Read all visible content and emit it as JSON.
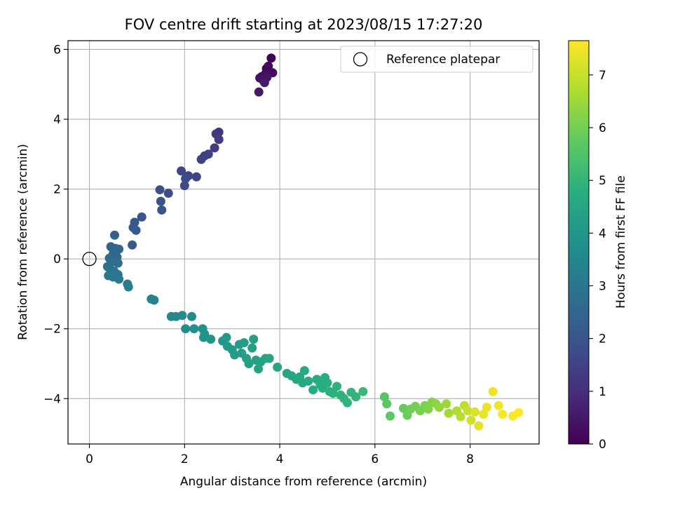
{
  "chart_data": {
    "type": "scatter",
    "title": "FOV centre drift starting at 2023/08/15 17:27:20",
    "xlabel": "Angular distance from reference (arcmin)",
    "ylabel": "Rotation from reference (arcmin)",
    "xlim": [
      -0.45,
      9.45
    ],
    "ylim": [
      -5.3,
      6.25
    ],
    "xticks": [
      0,
      2,
      4,
      6,
      8
    ],
    "yticks": [
      -4,
      -2,
      0,
      2,
      4,
      6
    ],
    "grid": true,
    "legend": {
      "placement": "top-right",
      "entries": [
        "Reference platepar"
      ]
    },
    "reference_point": {
      "x": 0,
      "y": 0,
      "label": "Reference platepar"
    },
    "colorbar": {
      "label": "Hours from first FF file",
      "range": [
        0,
        7.65
      ],
      "ticks": [
        0,
        1,
        2,
        3,
        4,
        5,
        6,
        7
      ],
      "colormap": "viridis"
    },
    "points": [
      {
        "x": 3.82,
        "y": 5.75,
        "c": 0.05
      },
      {
        "x": 3.72,
        "y": 5.45,
        "c": 0.1
      },
      {
        "x": 3.76,
        "y": 5.52,
        "c": 0.15
      },
      {
        "x": 3.85,
        "y": 5.33,
        "c": 0.2
      },
      {
        "x": 3.62,
        "y": 5.22,
        "c": 0.25
      },
      {
        "x": 3.7,
        "y": 5.3,
        "c": 0.3
      },
      {
        "x": 3.58,
        "y": 5.18,
        "c": 0.35
      },
      {
        "x": 3.66,
        "y": 5.1,
        "c": 0.4
      },
      {
        "x": 3.73,
        "y": 5.2,
        "c": 0.45
      },
      {
        "x": 3.56,
        "y": 4.78,
        "c": 0.5
      },
      {
        "x": 3.68,
        "y": 5.05,
        "c": 0.55
      },
      {
        "x": 2.72,
        "y": 3.63,
        "c": 1.2
      },
      {
        "x": 2.66,
        "y": 3.58,
        "c": 1.25
      },
      {
        "x": 2.72,
        "y": 3.42,
        "c": 1.3
      },
      {
        "x": 2.63,
        "y": 3.18,
        "c": 1.35
      },
      {
        "x": 2.5,
        "y": 3.0,
        "c": 1.4
      },
      {
        "x": 2.42,
        "y": 2.95,
        "c": 1.45
      },
      {
        "x": 2.35,
        "y": 2.85,
        "c": 1.5
      },
      {
        "x": 2.25,
        "y": 2.35,
        "c": 1.55
      },
      {
        "x": 2.08,
        "y": 2.38,
        "c": 1.6
      },
      {
        "x": 1.93,
        "y": 2.52,
        "c": 1.65
      },
      {
        "x": 2.0,
        "y": 2.1,
        "c": 1.7
      },
      {
        "x": 2.02,
        "y": 2.3,
        "c": 1.75
      },
      {
        "x": 1.66,
        "y": 1.88,
        "c": 1.8
      },
      {
        "x": 1.48,
        "y": 1.98,
        "c": 1.85
      },
      {
        "x": 1.5,
        "y": 1.65,
        "c": 1.9
      },
      {
        "x": 1.52,
        "y": 1.4,
        "c": 1.95
      },
      {
        "x": 1.1,
        "y": 1.2,
        "c": 2.0
      },
      {
        "x": 0.95,
        "y": 1.05,
        "c": 2.05
      },
      {
        "x": 0.92,
        "y": 0.9,
        "c": 2.1
      },
      {
        "x": 0.98,
        "y": 0.82,
        "c": 2.15
      },
      {
        "x": 0.9,
        "y": 0.4,
        "c": 2.2
      },
      {
        "x": 0.53,
        "y": 0.68,
        "c": 2.35
      },
      {
        "x": 0.45,
        "y": 0.35,
        "c": 2.4
      },
      {
        "x": 0.55,
        "y": 0.3,
        "c": 2.45
      },
      {
        "x": 0.62,
        "y": 0.28,
        "c": 2.5
      },
      {
        "x": 0.5,
        "y": 0.15,
        "c": 2.55
      },
      {
        "x": 0.58,
        "y": 0.05,
        "c": 2.6
      },
      {
        "x": 0.42,
        "y": 0.02,
        "c": 2.65
      },
      {
        "x": 0.46,
        "y": -0.1,
        "c": 2.7
      },
      {
        "x": 0.6,
        "y": -0.12,
        "c": 2.75
      },
      {
        "x": 0.38,
        "y": -0.22,
        "c": 2.8
      },
      {
        "x": 0.44,
        "y": -0.3,
        "c": 2.85
      },
      {
        "x": 0.52,
        "y": -0.35,
        "c": 2.9
      },
      {
        "x": 0.6,
        "y": -0.45,
        "c": 2.95
      },
      {
        "x": 0.4,
        "y": -0.48,
        "c": 3.0
      },
      {
        "x": 0.5,
        "y": -0.52,
        "c": 3.05
      },
      {
        "x": 0.62,
        "y": -0.58,
        "c": 3.1
      },
      {
        "x": 0.8,
        "y": -0.72,
        "c": 3.2
      },
      {
        "x": 0.82,
        "y": -0.8,
        "c": 3.25
      },
      {
        "x": 1.3,
        "y": -1.15,
        "c": 3.35
      },
      {
        "x": 1.36,
        "y": -1.18,
        "c": 3.4
      },
      {
        "x": 1.72,
        "y": -1.65,
        "c": 3.5
      },
      {
        "x": 1.82,
        "y": -1.65,
        "c": 3.55
      },
      {
        "x": 1.95,
        "y": -1.62,
        "c": 3.6
      },
      {
        "x": 2.15,
        "y": -1.65,
        "c": 3.65
      },
      {
        "x": 2.02,
        "y": -2.0,
        "c": 3.7
      },
      {
        "x": 2.2,
        "y": -2.0,
        "c": 3.75
      },
      {
        "x": 2.38,
        "y": -2.0,
        "c": 3.8
      },
      {
        "x": 2.42,
        "y": -2.15,
        "c": 3.85
      },
      {
        "x": 2.4,
        "y": -2.25,
        "c": 3.9
      },
      {
        "x": 2.55,
        "y": -2.3,
        "c": 3.95
      },
      {
        "x": 2.8,
        "y": -2.35,
        "c": 4.0
      },
      {
        "x": 2.88,
        "y": -2.25,
        "c": 4.05
      },
      {
        "x": 2.9,
        "y": -2.5,
        "c": 4.1
      },
      {
        "x": 3.0,
        "y": -2.6,
        "c": 4.12
      },
      {
        "x": 3.05,
        "y": -2.75,
        "c": 4.15
      },
      {
        "x": 3.15,
        "y": -2.45,
        "c": 4.18
      },
      {
        "x": 3.2,
        "y": -2.7,
        "c": 4.2
      },
      {
        "x": 3.25,
        "y": -2.4,
        "c": 4.22
      },
      {
        "x": 3.3,
        "y": -2.85,
        "c": 4.25
      },
      {
        "x": 3.35,
        "y": -3.0,
        "c": 4.28
      },
      {
        "x": 3.42,
        "y": -2.55,
        "c": 4.3
      },
      {
        "x": 3.45,
        "y": -2.3,
        "c": 4.32
      },
      {
        "x": 3.5,
        "y": -2.9,
        "c": 4.35
      },
      {
        "x": 3.55,
        "y": -3.15,
        "c": 4.38
      },
      {
        "x": 3.6,
        "y": -2.95,
        "c": 4.4
      },
      {
        "x": 3.7,
        "y": -2.85,
        "c": 4.42
      },
      {
        "x": 3.78,
        "y": -2.85,
        "c": 4.45
      },
      {
        "x": 3.95,
        "y": -3.1,
        "c": 4.48
      },
      {
        "x": 4.15,
        "y": -3.28,
        "c": 4.5
      },
      {
        "x": 4.25,
        "y": -3.35,
        "c": 4.52
      },
      {
        "x": 4.35,
        "y": -3.45,
        "c": 4.55
      },
      {
        "x": 4.42,
        "y": -3.38,
        "c": 4.58
      },
      {
        "x": 4.48,
        "y": -3.55,
        "c": 4.6
      },
      {
        "x": 4.52,
        "y": -3.2,
        "c": 4.62
      },
      {
        "x": 4.6,
        "y": -3.5,
        "c": 4.65
      },
      {
        "x": 4.7,
        "y": -3.75,
        "c": 4.68
      },
      {
        "x": 4.78,
        "y": -3.45,
        "c": 4.7
      },
      {
        "x": 4.85,
        "y": -3.6,
        "c": 4.72
      },
      {
        "x": 4.9,
        "y": -3.7,
        "c": 4.75
      },
      {
        "x": 4.95,
        "y": -3.4,
        "c": 4.78
      },
      {
        "x": 5.0,
        "y": -3.55,
        "c": 4.8
      },
      {
        "x": 5.05,
        "y": -3.8,
        "c": 4.82
      },
      {
        "x": 5.12,
        "y": -3.85,
        "c": 4.85
      },
      {
        "x": 5.2,
        "y": -3.65,
        "c": 4.88
      },
      {
        "x": 5.28,
        "y": -3.9,
        "c": 4.9
      },
      {
        "x": 5.35,
        "y": -4.0,
        "c": 4.92
      },
      {
        "x": 5.42,
        "y": -4.12,
        "c": 4.95
      },
      {
        "x": 5.5,
        "y": -3.82,
        "c": 4.98
      },
      {
        "x": 5.6,
        "y": -3.95,
        "c": 5.0
      },
      {
        "x": 5.75,
        "y": -3.8,
        "c": 5.1
      },
      {
        "x": 6.2,
        "y": -3.95,
        "c": 5.6
      },
      {
        "x": 6.25,
        "y": -4.15,
        "c": 5.65
      },
      {
        "x": 6.32,
        "y": -4.5,
        "c": 5.7
      },
      {
        "x": 6.6,
        "y": -4.28,
        "c": 5.85
      },
      {
        "x": 6.68,
        "y": -4.48,
        "c": 5.9
      },
      {
        "x": 6.75,
        "y": -4.3,
        "c": 5.95
      },
      {
        "x": 6.85,
        "y": -4.22,
        "c": 6.0
      },
      {
        "x": 6.95,
        "y": -4.35,
        "c": 6.05
      },
      {
        "x": 7.05,
        "y": -4.2,
        "c": 6.1
      },
      {
        "x": 7.12,
        "y": -4.3,
        "c": 6.15
      },
      {
        "x": 7.2,
        "y": -4.1,
        "c": 6.2
      },
      {
        "x": 7.28,
        "y": -4.15,
        "c": 6.3
      },
      {
        "x": 7.35,
        "y": -4.25,
        "c": 6.4
      },
      {
        "x": 7.5,
        "y": -4.15,
        "c": 6.5
      },
      {
        "x": 7.55,
        "y": -4.42,
        "c": 6.6
      },
      {
        "x": 7.72,
        "y": -4.35,
        "c": 6.7
      },
      {
        "x": 7.8,
        "y": -4.52,
        "c": 6.8
      },
      {
        "x": 7.88,
        "y": -4.2,
        "c": 6.9
      },
      {
        "x": 7.95,
        "y": -4.35,
        "c": 7.0
      },
      {
        "x": 8.02,
        "y": -4.62,
        "c": 7.1
      },
      {
        "x": 8.1,
        "y": -4.38,
        "c": 7.2
      },
      {
        "x": 8.18,
        "y": -4.78,
        "c": 7.3
      },
      {
        "x": 8.28,
        "y": -4.45,
        "c": 7.35
      },
      {
        "x": 8.35,
        "y": -4.25,
        "c": 7.4
      },
      {
        "x": 8.48,
        "y": -3.8,
        "c": 7.45
      },
      {
        "x": 8.6,
        "y": -4.2,
        "c": 7.5
      },
      {
        "x": 8.68,
        "y": -4.45,
        "c": 7.55
      },
      {
        "x": 8.9,
        "y": -4.5,
        "c": 7.6
      },
      {
        "x": 9.02,
        "y": -4.4,
        "c": 7.65
      }
    ]
  }
}
